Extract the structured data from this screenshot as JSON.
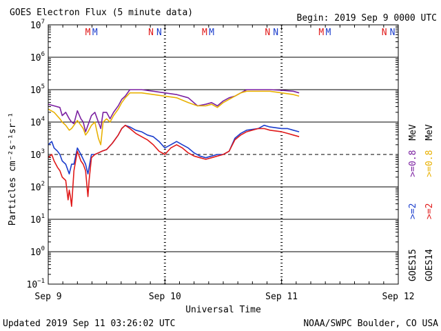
{
  "header": {
    "title": "GOES Electron Flux (5 minute data)",
    "begin": "Begin: 2019 Sep 9 0000 UTC"
  },
  "footer": {
    "updated": "Updated 2019 Sep 11 03:26:02 UTC",
    "credit": "NOAA/SWPC Boulder, CO USA"
  },
  "colors": {
    "goes15_high": "#7a1fa0",
    "goes14_high": "#e8b000",
    "goes15_low": "#1a3ccc",
    "goes14_low": "#e01818",
    "marker_m_red": "#e01818",
    "marker_m_blue": "#1a3ccc"
  },
  "chart_data": {
    "type": "line",
    "title": "GOES Electron Flux (5 minute data)",
    "xlabel": "Universal Time",
    "ylabel": "Particles cm⁻²s⁻¹sr⁻¹",
    "yscale": "log",
    "ylim_exp": [
      -1,
      7
    ],
    "ytick_exponents": [
      -1,
      0,
      1,
      2,
      3,
      4,
      5,
      6,
      7
    ],
    "dashed_threshold_exp": 3,
    "xlim_days": [
      0,
      3
    ],
    "xticks": [
      {
        "day": 0,
        "label": "Sep 9"
      },
      {
        "day": 1,
        "label": "Sep 10"
      },
      {
        "day": 2,
        "label": "Sep 11"
      },
      {
        "day": 3,
        "label": "Sep 12"
      }
    ],
    "right_legend": {
      "goes15": "GOES15",
      "goes14": "GOES14",
      "goes15_low": ">=2",
      "goes14_low": ">=2",
      "goes15_high": ">=0.8",
      "goes14_high": ">=0.8",
      "unit": "MeV"
    },
    "markers": [
      {
        "day": 0.34,
        "label": "M",
        "color": "marker_m_red"
      },
      {
        "day": 0.4,
        "label": "M",
        "color": "marker_m_blue"
      },
      {
        "day": 0.88,
        "label": "N",
        "color": "marker_m_red"
      },
      {
        "day": 0.95,
        "label": "N",
        "color": "marker_m_blue"
      },
      {
        "day": 1.34,
        "label": "M",
        "color": "marker_m_red"
      },
      {
        "day": 1.4,
        "label": "M",
        "color": "marker_m_blue"
      },
      {
        "day": 1.88,
        "label": "N",
        "color": "marker_m_red"
      },
      {
        "day": 1.95,
        "label": "N",
        "color": "marker_m_blue"
      },
      {
        "day": 2.34,
        "label": "M",
        "color": "marker_m_red"
      },
      {
        "day": 2.4,
        "label": "M",
        "color": "marker_m_blue"
      },
      {
        "day": 2.88,
        "label": "N",
        "color": "marker_m_red"
      },
      {
        "day": 2.95,
        "label": "N",
        "color": "marker_m_blue"
      }
    ],
    "series": [
      {
        "name": "GOES15 >=0.8 MeV",
        "color": "goes15_high",
        "points": [
          [
            0.0,
            4.55
          ],
          [
            0.05,
            4.5
          ],
          [
            0.1,
            4.45
          ],
          [
            0.12,
            4.2
          ],
          [
            0.15,
            4.3
          ],
          [
            0.18,
            4.1
          ],
          [
            0.2,
            4.0
          ],
          [
            0.22,
            3.95
          ],
          [
            0.25,
            4.35
          ],
          [
            0.28,
            4.1
          ],
          [
            0.3,
            4.0
          ],
          [
            0.32,
            3.7
          ],
          [
            0.34,
            3.9
          ],
          [
            0.37,
            4.2
          ],
          [
            0.4,
            4.3
          ],
          [
            0.43,
            4.0
          ],
          [
            0.45,
            3.8
          ],
          [
            0.47,
            4.3
          ],
          [
            0.5,
            4.3
          ],
          [
            0.53,
            4.1
          ],
          [
            0.56,
            4.3
          ],
          [
            0.6,
            4.5
          ],
          [
            0.63,
            4.7
          ],
          [
            0.66,
            4.8
          ],
          [
            0.7,
            5.0
          ],
          [
            0.8,
            5.0
          ],
          [
            0.9,
            4.95
          ],
          [
            1.0,
            4.9
          ],
          [
            1.1,
            4.85
          ],
          [
            1.2,
            4.75
          ],
          [
            1.28,
            4.5
          ],
          [
            1.35,
            4.55
          ],
          [
            1.4,
            4.6
          ],
          [
            1.45,
            4.5
          ],
          [
            1.5,
            4.65
          ],
          [
            1.55,
            4.75
          ],
          [
            1.6,
            4.8
          ],
          [
            1.65,
            4.9
          ],
          [
            1.7,
            5.0
          ],
          [
            1.8,
            5.0
          ],
          [
            1.9,
            5.0
          ],
          [
            2.0,
            4.98
          ],
          [
            2.1,
            4.95
          ],
          [
            2.15,
            4.9
          ]
        ]
      },
      {
        "name": "GOES14 >=0.8 MeV",
        "color": "goes14_high",
        "points": [
          [
            0.0,
            4.4
          ],
          [
            0.05,
            4.3
          ],
          [
            0.1,
            4.1
          ],
          [
            0.12,
            4.0
          ],
          [
            0.15,
            3.9
          ],
          [
            0.18,
            3.75
          ],
          [
            0.2,
            3.8
          ],
          [
            0.22,
            3.9
          ],
          [
            0.25,
            4.05
          ],
          [
            0.28,
            3.9
          ],
          [
            0.3,
            3.8
          ],
          [
            0.32,
            3.6
          ],
          [
            0.34,
            3.7
          ],
          [
            0.37,
            3.9
          ],
          [
            0.4,
            4.0
          ],
          [
            0.43,
            3.5
          ],
          [
            0.45,
            3.3
          ],
          [
            0.47,
            4.0
          ],
          [
            0.5,
            4.1
          ],
          [
            0.53,
            4.0
          ],
          [
            0.56,
            4.2
          ],
          [
            0.6,
            4.4
          ],
          [
            0.63,
            4.6
          ],
          [
            0.66,
            4.75
          ],
          [
            0.7,
            4.9
          ],
          [
            0.8,
            4.9
          ],
          [
            0.9,
            4.85
          ],
          [
            1.0,
            4.8
          ],
          [
            1.1,
            4.75
          ],
          [
            1.2,
            4.6
          ],
          [
            1.28,
            4.5
          ],
          [
            1.35,
            4.5
          ],
          [
            1.4,
            4.55
          ],
          [
            1.45,
            4.45
          ],
          [
            1.5,
            4.6
          ],
          [
            1.55,
            4.7
          ],
          [
            1.6,
            4.8
          ],
          [
            1.65,
            4.9
          ],
          [
            1.7,
            4.95
          ],
          [
            1.8,
            4.95
          ],
          [
            1.9,
            4.95
          ],
          [
            2.0,
            4.9
          ],
          [
            2.1,
            4.85
          ],
          [
            2.15,
            4.8
          ]
        ]
      },
      {
        "name": "GOES15 >=2 MeV",
        "color": "goes15_low",
        "points": [
          [
            0.0,
            3.3
          ],
          [
            0.03,
            3.4
          ],
          [
            0.05,
            3.2
          ],
          [
            0.08,
            3.1
          ],
          [
            0.1,
            3.0
          ],
          [
            0.12,
            2.8
          ],
          [
            0.15,
            2.7
          ],
          [
            0.18,
            2.4
          ],
          [
            0.2,
            2.7
          ],
          [
            0.22,
            2.7
          ],
          [
            0.25,
            3.2
          ],
          [
            0.28,
            3.0
          ],
          [
            0.3,
            2.85
          ],
          [
            0.32,
            2.7
          ],
          [
            0.34,
            2.4
          ],
          [
            0.35,
            2.6
          ],
          [
            0.37,
            3.0
          ],
          [
            0.4,
            3.0
          ],
          [
            0.43,
            3.05
          ],
          [
            0.46,
            3.1
          ],
          [
            0.5,
            3.15
          ],
          [
            0.55,
            3.35
          ],
          [
            0.6,
            3.6
          ],
          [
            0.63,
            3.8
          ],
          [
            0.66,
            3.9
          ],
          [
            0.7,
            3.85
          ],
          [
            0.75,
            3.75
          ],
          [
            0.8,
            3.7
          ],
          [
            0.85,
            3.6
          ],
          [
            0.9,
            3.55
          ],
          [
            0.95,
            3.4
          ],
          [
            1.0,
            3.2
          ],
          [
            1.05,
            3.3
          ],
          [
            1.1,
            3.4
          ],
          [
            1.15,
            3.3
          ],
          [
            1.2,
            3.2
          ],
          [
            1.25,
            3.05
          ],
          [
            1.3,
            2.95
          ],
          [
            1.35,
            2.9
          ],
          [
            1.4,
            2.95
          ],
          [
            1.45,
            3.0
          ],
          [
            1.5,
            3.0
          ],
          [
            1.55,
            3.1
          ],
          [
            1.6,
            3.5
          ],
          [
            1.65,
            3.65
          ],
          [
            1.7,
            3.75
          ],
          [
            1.8,
            3.8
          ],
          [
            1.85,
            3.9
          ],
          [
            1.9,
            3.85
          ],
          [
            2.0,
            3.8
          ],
          [
            2.05,
            3.8
          ],
          [
            2.1,
            3.75
          ],
          [
            2.15,
            3.7
          ]
        ]
      },
      {
        "name": "GOES14 >=2 MeV",
        "color": "goes14_low",
        "points": [
          [
            0.0,
            2.9
          ],
          [
            0.03,
            3.0
          ],
          [
            0.05,
            2.8
          ],
          [
            0.08,
            2.6
          ],
          [
            0.1,
            2.5
          ],
          [
            0.12,
            2.3
          ],
          [
            0.15,
            2.2
          ],
          [
            0.17,
            1.6
          ],
          [
            0.18,
            1.9
          ],
          [
            0.19,
            1.7
          ],
          [
            0.2,
            1.4
          ],
          [
            0.22,
            2.5
          ],
          [
            0.25,
            3.1
          ],
          [
            0.28,
            2.8
          ],
          [
            0.3,
            2.7
          ],
          [
            0.32,
            2.5
          ],
          [
            0.33,
            2.1
          ],
          [
            0.34,
            1.7
          ],
          [
            0.35,
            2.2
          ],
          [
            0.37,
            2.9
          ],
          [
            0.4,
            3.0
          ],
          [
            0.43,
            3.05
          ],
          [
            0.46,
            3.1
          ],
          [
            0.5,
            3.15
          ],
          [
            0.55,
            3.35
          ],
          [
            0.6,
            3.6
          ],
          [
            0.63,
            3.8
          ],
          [
            0.66,
            3.9
          ],
          [
            0.7,
            3.8
          ],
          [
            0.75,
            3.65
          ],
          [
            0.8,
            3.55
          ],
          [
            0.85,
            3.45
          ],
          [
            0.9,
            3.3
          ],
          [
            0.95,
            3.1
          ],
          [
            1.0,
            3.0
          ],
          [
            1.05,
            3.2
          ],
          [
            1.1,
            3.3
          ],
          [
            1.15,
            3.2
          ],
          [
            1.2,
            3.05
          ],
          [
            1.25,
            2.95
          ],
          [
            1.3,
            2.9
          ],
          [
            1.35,
            2.85
          ],
          [
            1.4,
            2.9
          ],
          [
            1.45,
            2.95
          ],
          [
            1.5,
            3.0
          ],
          [
            1.55,
            3.1
          ],
          [
            1.6,
            3.45
          ],
          [
            1.65,
            3.6
          ],
          [
            1.7,
            3.7
          ],
          [
            1.8,
            3.8
          ],
          [
            1.85,
            3.8
          ],
          [
            1.9,
            3.75
          ],
          [
            2.0,
            3.7
          ],
          [
            2.05,
            3.65
          ],
          [
            2.1,
            3.6
          ],
          [
            2.15,
            3.55
          ]
        ]
      }
    ]
  }
}
